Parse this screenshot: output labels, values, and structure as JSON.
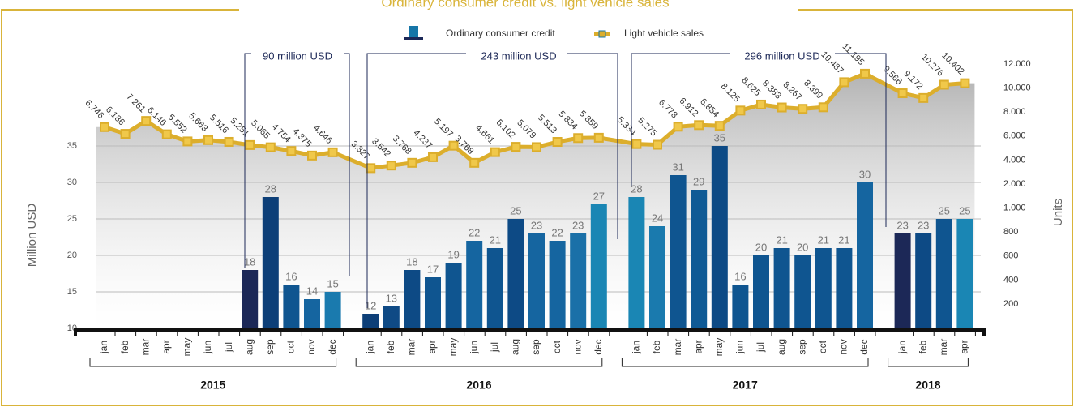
{
  "chart_data": {
    "type": "bar",
    "title": "Ordinary consumer credit vs. light vehicle sales",
    "y_label": "Million USD",
    "y2_label": "Units",
    "categories": [
      "jan",
      "feb",
      "mar",
      "apr",
      "may",
      "jun",
      "jul",
      "aug",
      "sep",
      "oct",
      "nov",
      "dec",
      "jan",
      "feb",
      "mar",
      "apr",
      "may",
      "jun",
      "jul",
      "aug",
      "sep",
      "oct",
      "nov",
      "dec",
      "jan",
      "feb",
      "mar",
      "apr",
      "may",
      "jun",
      "jul",
      "aug",
      "sep",
      "oct",
      "nov",
      "dec",
      "jan",
      "feb",
      "mar",
      "apr"
    ],
    "years": [
      "2015",
      "2016",
      "2017",
      "2018"
    ],
    "ylim": [
      10,
      35
    ],
    "yticks": [
      10,
      15,
      20,
      25,
      30,
      35
    ],
    "y2lim": [
      200,
      12000
    ],
    "y2ticks": [
      200,
      400,
      600,
      800,
      {
        "value": 1000,
        "label": "1.000"
      },
      {
        "value": 2000,
        "label": "2.000"
      },
      {
        "value": 4000,
        "label": "4.000"
      },
      {
        "value": 6000,
        "label": "6.000"
      },
      {
        "value": 8000,
        "label": "8.000"
      },
      {
        "value": 10000,
        "label": "10.000"
      },
      {
        "value": 12000,
        "label": "12.000"
      }
    ],
    "grid": true,
    "series": [
      {
        "name": "Ordinary consumer credit",
        "type": "bar",
        "color": "#1676a8",
        "colors": [
          null,
          null,
          null,
          null,
          null,
          null,
          null,
          "#1c2857",
          "#0d3f78",
          "#0f5590",
          "#1565a0",
          "#1a7aae",
          "#0d3f78",
          "#0f4a85",
          "#0d4a85",
          "#0f5590",
          "#0f5590",
          "#1565a0",
          "#0f5590",
          "#0d4a85",
          "#1565a0",
          "#1565a0",
          "#1a70a8",
          "#1a86b4",
          "#1a86b4",
          "#1a7aae",
          "#0f5590",
          "#0f5a95",
          "#0d4a85",
          "#0f5590",
          "#0f5590",
          "#0f5590",
          "#0f5590",
          "#0f5590",
          "#0f5590",
          "#1565a0",
          "#1c2857",
          "#0d4a85",
          "#0f5590",
          "#1a86b4"
        ],
        "values": [
          null,
          null,
          null,
          null,
          null,
          null,
          null,
          18,
          28,
          16,
          14,
          15,
          12,
          13,
          18,
          17,
          19,
          22,
          21,
          25,
          23,
          22,
          23,
          27,
          28,
          24,
          31,
          29,
          35,
          16,
          20,
          21,
          20,
          21,
          21,
          30,
          23,
          23,
          25,
          25
        ]
      },
      {
        "name": "Light vehicle sales",
        "type": "line",
        "axis": "y2",
        "color": "#dcae2c",
        "values": [
          6746,
          6186,
          7261,
          6146,
          5552,
          5663,
          5516,
          5251,
          5065,
          4754,
          4375,
          4646,
          3327,
          3542,
          3768,
          4237,
          5197,
          3768,
          4661,
          5102,
          5079,
          5513,
          5834,
          5859,
          5334,
          5275,
          6778,
          6912,
          6854,
          8125,
          8625,
          8383,
          8267,
          8399,
          10487,
          11195,
          9566,
          9172,
          10276,
          10402
        ],
        "value_labels": [
          "6.746",
          "6.186",
          "7.261",
          "6.146",
          "5.552",
          "5.663",
          "5.516",
          "5.251",
          "5.065",
          "4.754",
          "4.375",
          "4.646",
          "3.327",
          "3.542",
          "3.768",
          "4.237",
          "5.197",
          "3.768",
          "4.661",
          "5.102",
          "5.079",
          "5.513",
          "5.834",
          "5.859",
          "5.334",
          "5.275",
          "6.778",
          "6.912",
          "6.854",
          "8.125",
          "8.625",
          "8.383",
          "8.267",
          "8.399",
          "10.487",
          "11.195",
          "9.566",
          "9.172",
          "10.276",
          "10.402"
        ]
      }
    ],
    "annotations": [
      {
        "text": "90 million USD"
      },
      {
        "text": "243 million USD"
      },
      {
        "text": "296 million USD"
      }
    ]
  }
}
